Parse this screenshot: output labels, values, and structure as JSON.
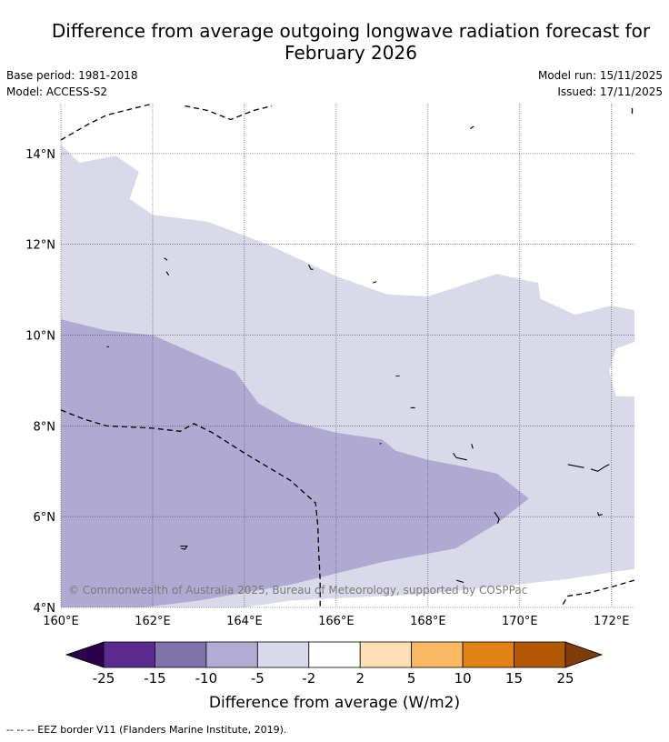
{
  "title_line1": "Difference from average outgoing longwave radiation forecast for",
  "title_line2": "February 2026",
  "base_period": "Base period: 1981-2018",
  "model": "Model: ACCESS-S2",
  "model_run": "Model run: 15/11/2025",
  "issued": "Issued: 17/11/2025",
  "map": {
    "lon_range": [
      160,
      172.5
    ],
    "lat_range": [
      4,
      15.1
    ],
    "lon_ticks": [
      {
        "value": 160,
        "label": "160°E"
      },
      {
        "value": 162,
        "label": "162°E"
      },
      {
        "value": 164,
        "label": "164°E"
      },
      {
        "value": 166,
        "label": "166°E"
      },
      {
        "value": 168,
        "label": "168°E"
      },
      {
        "value": 170,
        "label": "170°E"
      },
      {
        "value": 172,
        "label": "172°E"
      }
    ],
    "lat_ticks": [
      {
        "value": 4,
        "label": "4°N"
      },
      {
        "value": 6,
        "label": "6°N"
      },
      {
        "value": 8,
        "label": "8°N"
      },
      {
        "value": 10,
        "label": "10°N"
      },
      {
        "value": 12,
        "label": "12°N"
      },
      {
        "value": 14,
        "label": "14°N"
      }
    ],
    "copyright": "© Commonwealth of Australia 2025, Bureau of Meteorology, supported by COSPPac",
    "regions": [
      {
        "name": "anomaly-minus5-to-minus2",
        "color": "#d9d9ea",
        "polygon": [
          [
            160,
            14.2
          ],
          [
            160.4,
            13.8
          ],
          [
            161.2,
            13.95
          ],
          [
            161.7,
            13.6
          ],
          [
            161.5,
            13.0
          ],
          [
            162,
            12.65
          ],
          [
            163.2,
            12.5
          ],
          [
            164.5,
            12.0
          ],
          [
            166,
            11.3
          ],
          [
            167.1,
            10.9
          ],
          [
            168,
            10.85
          ],
          [
            169.5,
            11.35
          ],
          [
            170.4,
            11.15
          ],
          [
            170.45,
            10.8
          ],
          [
            171.2,
            10.45
          ],
          [
            172,
            10.65
          ],
          [
            172.5,
            10.55
          ],
          [
            172.5,
            9.85
          ],
          [
            172.1,
            9.7
          ],
          [
            171.95,
            9.2
          ],
          [
            172.1,
            8.65
          ],
          [
            172.5,
            8.65
          ],
          [
            172.5,
            4.85
          ],
          [
            171,
            4.62
          ],
          [
            168,
            4.3
          ],
          [
            165,
            4.15
          ],
          [
            164,
            4.0
          ],
          [
            160,
            4.0
          ]
        ]
      },
      {
        "name": "anomaly-minus10-to-minus5",
        "color": "#b0aad2",
        "polygon": [
          [
            160,
            10.35
          ],
          [
            161,
            10.1
          ],
          [
            162,
            10.0
          ],
          [
            163.8,
            9.2
          ],
          [
            164.3,
            8.5
          ],
          [
            165,
            8.1
          ],
          [
            166,
            7.85
          ],
          [
            167,
            7.7
          ],
          [
            167.3,
            7.45
          ],
          [
            168,
            7.25
          ],
          [
            168.8,
            7.1
          ],
          [
            169.5,
            6.95
          ],
          [
            170.2,
            6.4
          ],
          [
            169.5,
            5.85
          ],
          [
            168.6,
            5.3
          ],
          [
            167,
            5.0
          ],
          [
            165,
            4.5
          ],
          [
            163,
            4.15
          ],
          [
            161.8,
            4.0
          ],
          [
            160,
            4.0
          ]
        ]
      }
    ],
    "eez_borders": [
      [
        [
          160,
          14.3
        ],
        [
          160.6,
          14.65
        ],
        [
          161,
          14.85
        ],
        [
          161.6,
          15.0
        ],
        [
          162,
          15.1
        ]
      ],
      [
        [
          162.7,
          15.05
        ],
        [
          163.2,
          14.95
        ],
        [
          163.7,
          14.75
        ],
        [
          164.2,
          14.95
        ],
        [
          164.6,
          15.05
        ]
      ],
      [
        [
          160,
          8.35
        ],
        [
          160.5,
          8.15
        ],
        [
          161,
          8.0
        ],
        [
          162,
          7.95
        ],
        [
          162.6,
          7.88
        ],
        [
          162.9,
          8.05
        ],
        [
          163.3,
          7.85
        ],
        [
          164,
          7.4
        ],
        [
          165,
          6.8
        ],
        [
          165.55,
          6.3
        ],
        [
          165.6,
          5.8
        ],
        [
          165.62,
          5.2
        ],
        [
          165.65,
          4.6
        ],
        [
          165.65,
          4.0
        ]
      ],
      [
        [
          172.5,
          4.6
        ],
        [
          172,
          4.45
        ],
        [
          171.5,
          4.32
        ],
        [
          171.05,
          4.25
        ],
        [
          170.9,
          4.0
        ]
      ],
      [
        [
          172.45,
          15.0
        ],
        [
          172.45,
          14.85
        ]
      ]
    ],
    "islands": [
      [
        [
          162.6,
          5.35
        ],
        [
          162.75,
          5.35
        ],
        [
          162.7,
          5.28
        ],
        [
          162.62,
          5.3
        ]
      ],
      [
        [
          171.05,
          7.15
        ],
        [
          171.3,
          7.1
        ],
        [
          171.4,
          7.08
        ]
      ],
      [
        [
          171.55,
          7.05
        ],
        [
          171.7,
          7.0
        ],
        [
          171.85,
          7.1
        ],
        [
          171.95,
          7.15
        ]
      ],
      [
        [
          166.95,
          7.6
        ],
        [
          166.98,
          7.62
        ]
      ],
      [
        [
          169.45,
          6.1
        ],
        [
          169.55,
          5.95
        ],
        [
          169.52,
          5.85
        ]
      ],
      [
        [
          168.55,
          7.4
        ],
        [
          168.62,
          7.3
        ],
        [
          168.85,
          7.25
        ]
      ],
      [
        [
          168.95,
          7.6
        ],
        [
          168.98,
          7.5
        ]
      ],
      [
        [
          171.7,
          6.1
        ],
        [
          171.72,
          6.03
        ],
        [
          171.8,
          6.05
        ]
      ],
      [
        [
          168.62,
          4.6
        ],
        [
          168.78,
          4.55
        ]
      ],
      [
        [
          165.4,
          11.55
        ],
        [
          165.45,
          11.45
        ],
        [
          165.5,
          11.45
        ]
      ],
      [
        [
          166.8,
          11.15
        ],
        [
          166.88,
          11.18
        ]
      ],
      [
        [
          162.25,
          11.7
        ],
        [
          162.32,
          11.65
        ]
      ],
      [
        [
          162.3,
          11.4
        ],
        [
          162.35,
          11.32
        ]
      ],
      [
        [
          168.92,
          14.55
        ],
        [
          169.0,
          14.6
        ]
      ],
      [
        [
          161.0,
          9.75
        ],
        [
          161.05,
          9.74
        ]
      ],
      [
        [
          167.3,
          9.1
        ],
        [
          167.38,
          9.1
        ]
      ],
      [
        [
          167.62,
          8.4
        ],
        [
          167.72,
          8.4
        ]
      ]
    ]
  },
  "colorbar": {
    "colors": [
      "#2d004b",
      "#5c2a8f",
      "#8073ac",
      "#b2abd2",
      "#d8daeb",
      "#ffffff",
      "#fee0b6",
      "#fdb863",
      "#e08214",
      "#b35806",
      "#7f3b08"
    ],
    "labels": [
      "-25",
      "-15",
      "-10",
      "-5",
      "-2",
      "2",
      "5",
      "10",
      "15",
      "25"
    ],
    "title": "Difference from average (W/m2)"
  },
  "footer": "--  --  -- EEZ border V11 (Flanders Marine Institute, 2019)."
}
